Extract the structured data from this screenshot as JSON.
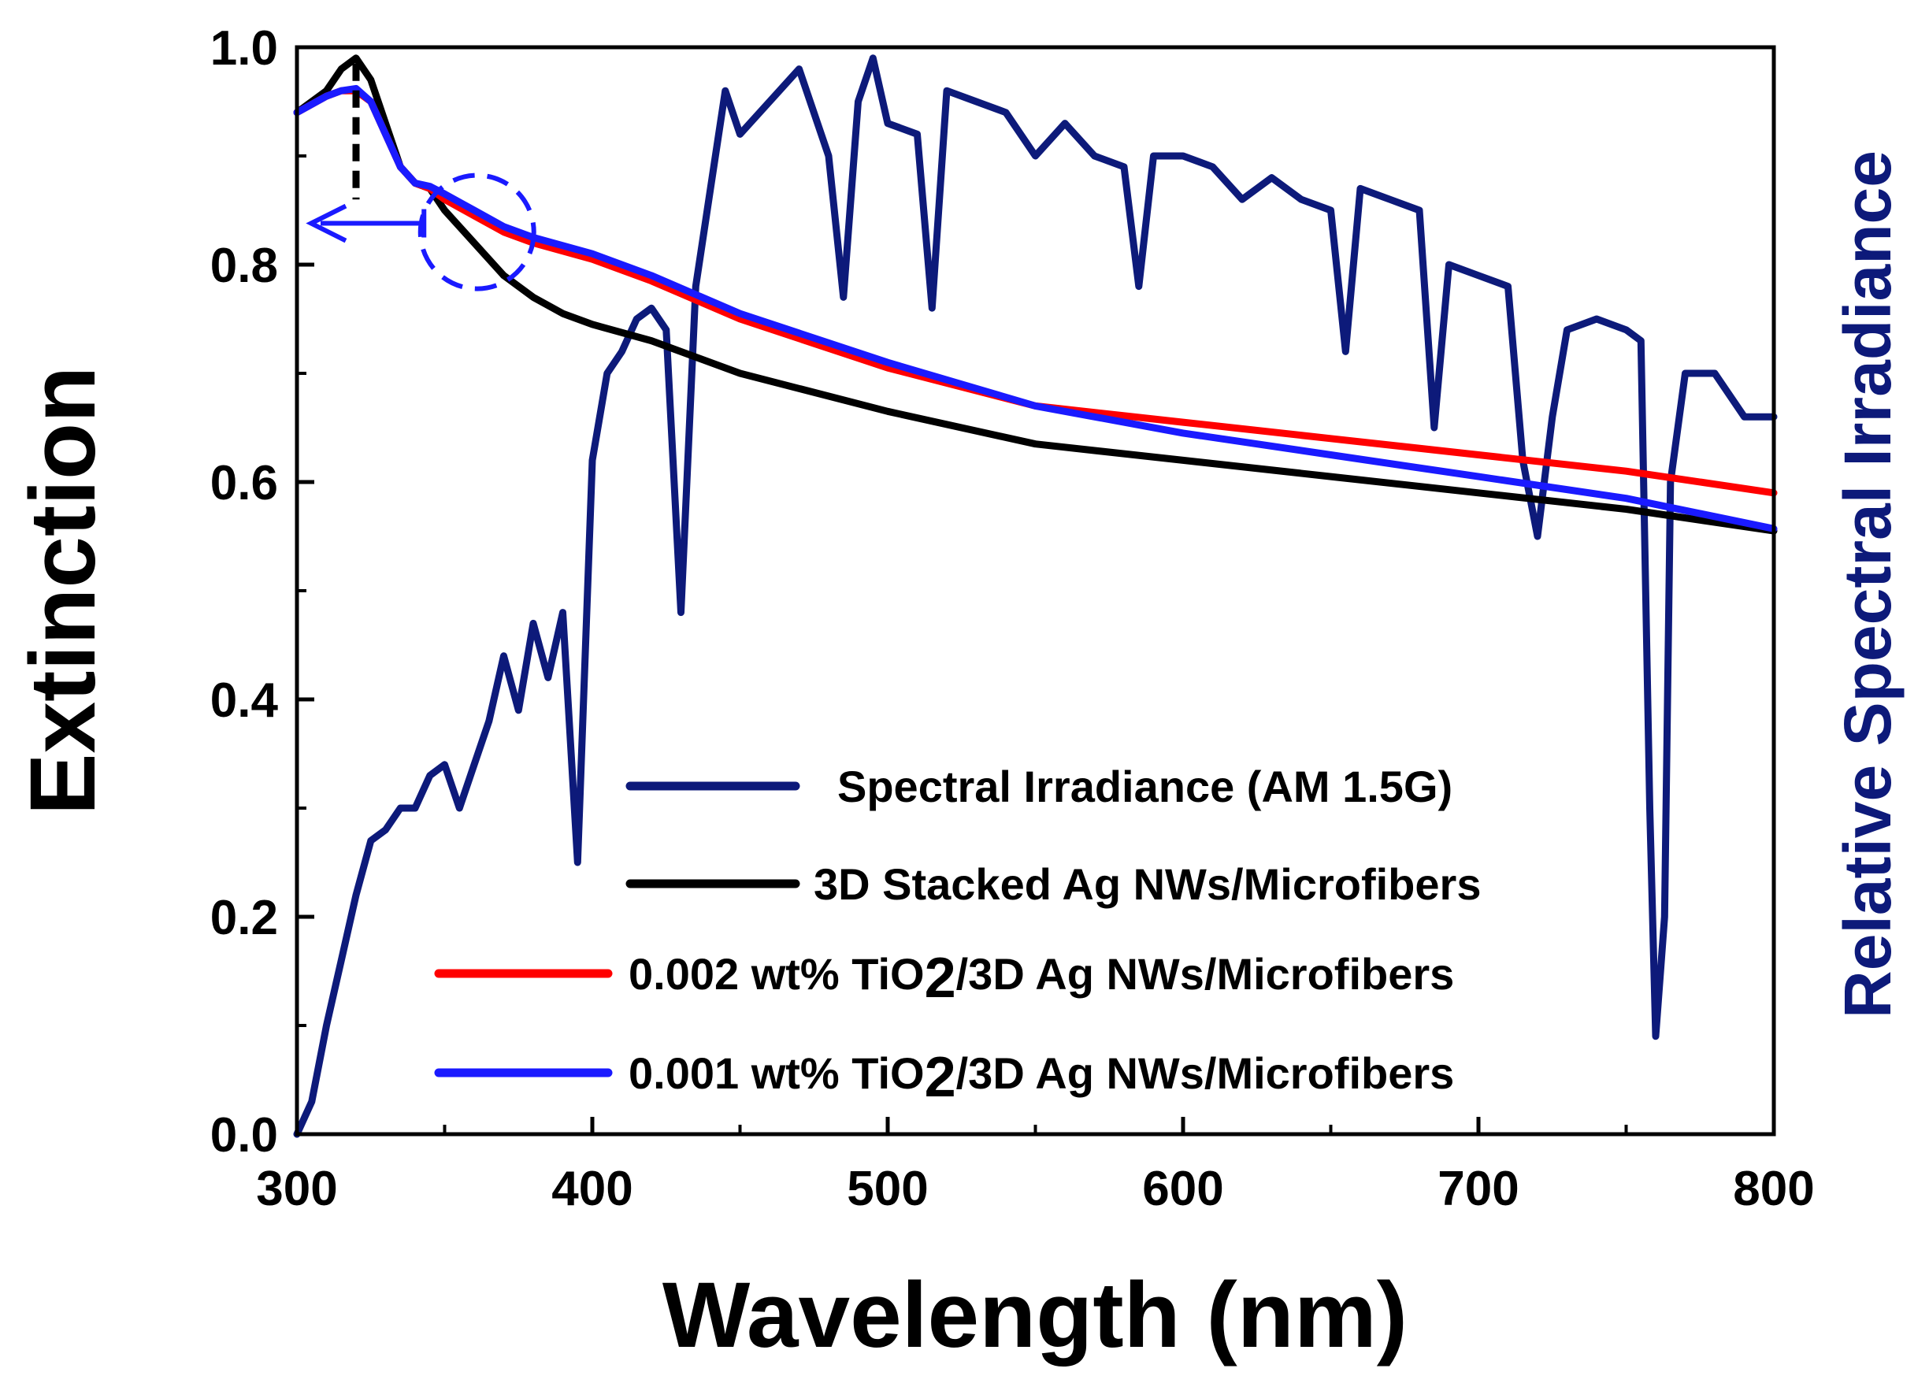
{
  "chart_data": {
    "type": "line",
    "xlabel": "Wavelength (nm)",
    "ylabel": "Extinction",
    "y2label": "Relative Spectral Irradiance",
    "xlim": [
      300,
      800
    ],
    "ylim": [
      0.0,
      1.0
    ],
    "x_ticks": [
      "300",
      "400",
      "500",
      "600",
      "700",
      "800"
    ],
    "y_ticks": [
      "0.0",
      "0.2",
      "0.4",
      "0.6",
      "0.8",
      "1.0"
    ],
    "legend_position": "bottom-center",
    "annotations": [
      "peak marker at ~320 nm (dashed)",
      "dashed circle near ~360 nm with arrow pointing to left axis"
    ],
    "series": [
      {
        "name": "Spectral Irradiance (AM 1.5G)",
        "label_pre": "Spectral Irradiance (AM 1.5G)",
        "label_sub": "",
        "label_post": "",
        "color": "#0d1a7a",
        "axis": "right",
        "x": [
          300,
          305,
          310,
          315,
          320,
          325,
          330,
          335,
          340,
          345,
          350,
          355,
          360,
          365,
          370,
          375,
          380,
          385,
          390,
          395,
          400,
          405,
          410,
          415,
          420,
          425,
          430,
          435,
          440,
          445,
          450,
          460,
          470,
          480,
          485,
          490,
          495,
          500,
          510,
          515,
          520,
          530,
          540,
          550,
          560,
          570,
          580,
          585,
          590,
          600,
          610,
          620,
          630,
          640,
          650,
          655,
          660,
          670,
          680,
          685,
          690,
          700,
          710,
          715,
          720,
          725,
          730,
          740,
          750,
          755,
          758,
          760,
          763,
          765,
          770,
          780,
          790,
          800
        ],
        "y": [
          0.0,
          0.03,
          0.1,
          0.16,
          0.22,
          0.27,
          0.28,
          0.3,
          0.3,
          0.33,
          0.34,
          0.3,
          0.34,
          0.38,
          0.44,
          0.39,
          0.47,
          0.42,
          0.48,
          0.25,
          0.62,
          0.7,
          0.72,
          0.75,
          0.76,
          0.74,
          0.48,
          0.78,
          0.87,
          0.96,
          0.92,
          0.95,
          0.98,
          0.9,
          0.77,
          0.95,
          0.99,
          0.93,
          0.92,
          0.76,
          0.96,
          0.95,
          0.94,
          0.9,
          0.93,
          0.9,
          0.89,
          0.78,
          0.9,
          0.9,
          0.89,
          0.86,
          0.88,
          0.86,
          0.85,
          0.72,
          0.87,
          0.86,
          0.85,
          0.65,
          0.8,
          0.79,
          0.78,
          0.62,
          0.55,
          0.66,
          0.74,
          0.75,
          0.74,
          0.73,
          0.3,
          0.09,
          0.2,
          0.6,
          0.7,
          0.7,
          0.66,
          0.66
        ]
      },
      {
        "name": "3D Stacked Ag NWs/Microfibers",
        "label_pre": "3D Stacked Ag NWs/Microfibers",
        "label_sub": "",
        "label_post": "",
        "color": "#000000",
        "axis": "left",
        "x": [
          300,
          310,
          315,
          320,
          325,
          330,
          335,
          340,
          345,
          350,
          360,
          370,
          380,
          390,
          400,
          420,
          450,
          500,
          550,
          600,
          650,
          700,
          750,
          800
        ],
        "y": [
          0.94,
          0.96,
          0.98,
          0.99,
          0.97,
          0.93,
          0.89,
          0.875,
          0.87,
          0.85,
          0.82,
          0.79,
          0.77,
          0.755,
          0.745,
          0.73,
          0.7,
          0.665,
          0.635,
          0.62,
          0.605,
          0.59,
          0.575,
          0.555
        ]
      },
      {
        "name": "0.002 wt% TiO2/3D Ag NWs/Microfibers",
        "label_pre": "0.002 wt%  TiO",
        "label_sub": "2",
        "label_post": "/3D Ag NWs/Microfibers",
        "color": "#ff0000",
        "axis": "left",
        "x": [
          300,
          310,
          315,
          320,
          325,
          330,
          335,
          340,
          345,
          350,
          360,
          370,
          380,
          400,
          420,
          450,
          500,
          550,
          600,
          650,
          700,
          750,
          800
        ],
        "y": [
          0.94,
          0.955,
          0.96,
          0.96,
          0.95,
          0.92,
          0.89,
          0.875,
          0.87,
          0.86,
          0.845,
          0.83,
          0.82,
          0.805,
          0.785,
          0.75,
          0.705,
          0.67,
          0.655,
          0.64,
          0.625,
          0.61,
          0.59
        ]
      },
      {
        "name": "0.001 wt% TiO2/3D Ag NWs/Microfibers",
        "label_pre": "0.001 wt%  TiO",
        "label_sub": "2",
        "label_post": "/3D Ag NWs/Microfibers",
        "color": "#1a1aff",
        "axis": "left",
        "x": [
          300,
          310,
          315,
          320,
          325,
          330,
          335,
          340,
          345,
          350,
          360,
          370,
          380,
          400,
          420,
          450,
          500,
          550,
          600,
          650,
          700,
          750,
          800
        ],
        "y": [
          0.94,
          0.955,
          0.96,
          0.962,
          0.95,
          0.92,
          0.89,
          0.875,
          0.872,
          0.865,
          0.85,
          0.835,
          0.825,
          0.81,
          0.79,
          0.755,
          0.71,
          0.67,
          0.645,
          0.625,
          0.605,
          0.585,
          0.557
        ]
      }
    ]
  }
}
